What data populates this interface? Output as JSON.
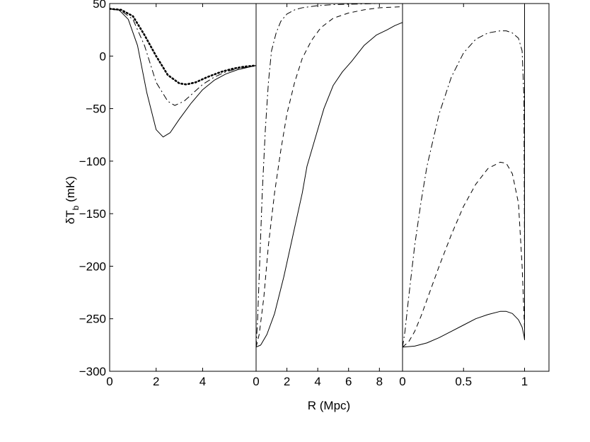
{
  "figure": {
    "ylabel_main": "δT",
    "ylabel_sub": "b",
    "ylabel_unit": " (mK)",
    "xlabel": "R (Mpc)"
  },
  "chart_data": [
    {
      "type": "line",
      "panel": "left",
      "xlim": [
        0,
        6.3
      ],
      "ylim": [
        -300,
        50
      ],
      "xticks": [
        0,
        2,
        4
      ],
      "yticks": [
        -300,
        -250,
        -200,
        -150,
        -100,
        -50,
        0,
        50
      ],
      "series": [
        {
          "style": "solid",
          "x": [
            0,
            0.4,
            0.8,
            1.2,
            1.6,
            2.0,
            2.3,
            2.6,
            3.0,
            3.5,
            4.0,
            4.5,
            5.0,
            5.5,
            6.3
          ],
          "y": [
            45,
            44,
            35,
            10,
            -35,
            -70,
            -77,
            -73,
            -60,
            -45,
            -32,
            -23,
            -17,
            -13,
            -9
          ]
        },
        {
          "style": "dashdot",
          "x": [
            0,
            0.5,
            1.0,
            1.5,
            2.0,
            2.5,
            2.8,
            3.2,
            3.6,
            4.0,
            4.5,
            5.0,
            5.5,
            6.3
          ],
          "y": [
            45,
            43,
            35,
            10,
            -25,
            -43,
            -47,
            -43,
            -35,
            -27,
            -20,
            -15,
            -12,
            -9
          ]
        },
        {
          "style": "dotted",
          "x": [
            0,
            0.5,
            1.0,
            1.5,
            2.0,
            2.5,
            3.0,
            3.3,
            3.7,
            4.2,
            4.8,
            5.3,
            5.8,
            6.3
          ],
          "y": [
            45,
            44,
            38,
            20,
            0,
            -18,
            -26,
            -27,
            -25,
            -20,
            -15,
            -12,
            -10,
            -9
          ]
        }
      ]
    },
    {
      "type": "line",
      "panel": "middle",
      "xlim": [
        0,
        9.5
      ],
      "ylim": [
        -300,
        50
      ],
      "xticks": [
        0,
        2,
        4,
        6,
        8
      ],
      "series": [
        {
          "style": "solid",
          "x": [
            0,
            0.3,
            0.7,
            1.2,
            1.8,
            2.4,
            3.0,
            3.3,
            3.8,
            4.4,
            5.0,
            5.6,
            6.2,
            7.0,
            7.8,
            8.5,
            9.0,
            9.5
          ],
          "y": [
            -277,
            -275,
            -265,
            -245,
            -210,
            -170,
            -130,
            -105,
            -80,
            -50,
            -28,
            -15,
            -5,
            10,
            20,
            25,
            29,
            32
          ]
        },
        {
          "style": "dashed",
          "x": [
            0,
            0.2,
            0.5,
            0.8,
            1.2,
            1.6,
            2.0,
            2.5,
            3.0,
            3.6,
            4.2,
            5.0,
            6.0,
            7.0,
            8.0,
            9.5
          ],
          "y": [
            -277,
            -265,
            -230,
            -180,
            -130,
            -90,
            -55,
            -25,
            -2,
            15,
            27,
            36,
            41,
            44,
            46,
            47
          ]
        },
        {
          "style": "dashdot",
          "x": [
            0,
            0.1,
            0.25,
            0.4,
            0.6,
            0.8,
            1.0,
            1.3,
            1.6,
            2.0,
            2.5,
            3.0,
            4.0,
            5.0,
            6.5,
            8.0,
            9.5
          ],
          "y": [
            -277,
            -250,
            -190,
            -130,
            -70,
            -25,
            5,
            22,
            33,
            40,
            44,
            46,
            48,
            49,
            49.5,
            50,
            50
          ]
        }
      ]
    },
    {
      "type": "line",
      "panel": "right",
      "xlim": [
        0,
        1.2
      ],
      "ylim": [
        -300,
        50
      ],
      "xticks": [
        0,
        0.5,
        1
      ],
      "series": [
        {
          "style": "solid",
          "x": [
            0,
            0.1,
            0.2,
            0.3,
            0.4,
            0.5,
            0.6,
            0.7,
            0.8,
            0.85,
            0.9,
            0.95,
            0.98,
            0.995,
            1.0,
            1.0,
            1.2
          ],
          "y": [
            -277,
            -276,
            -273,
            -268,
            -262,
            -256,
            -250,
            -246,
            -243,
            -243,
            -245,
            -251,
            -258,
            -266,
            -270,
            50,
            50
          ]
        },
        {
          "style": "dashed",
          "x": [
            0,
            0.05,
            0.1,
            0.15,
            0.2,
            0.3,
            0.4,
            0.5,
            0.6,
            0.7,
            0.8,
            0.85,
            0.9,
            0.95,
            0.98,
            1.0,
            1.0,
            1.2
          ],
          "y": [
            -277,
            -272,
            -262,
            -248,
            -232,
            -200,
            -170,
            -143,
            -122,
            -107,
            -101,
            -102,
            -112,
            -140,
            -200,
            -260,
            50,
            50
          ]
        },
        {
          "style": "dashdot",
          "x": [
            0,
            0.02,
            0.05,
            0.1,
            0.15,
            0.2,
            0.3,
            0.4,
            0.5,
            0.6,
            0.7,
            0.8,
            0.85,
            0.9,
            0.95,
            0.98,
            0.995,
            1.0,
            1.0,
            1.2
          ],
          "y": [
            -277,
            -262,
            -230,
            -180,
            -140,
            -105,
            -55,
            -20,
            3,
            16,
            22,
            24,
            24,
            22,
            17,
            5,
            -40,
            -200,
            50,
            50
          ]
        }
      ]
    }
  ]
}
